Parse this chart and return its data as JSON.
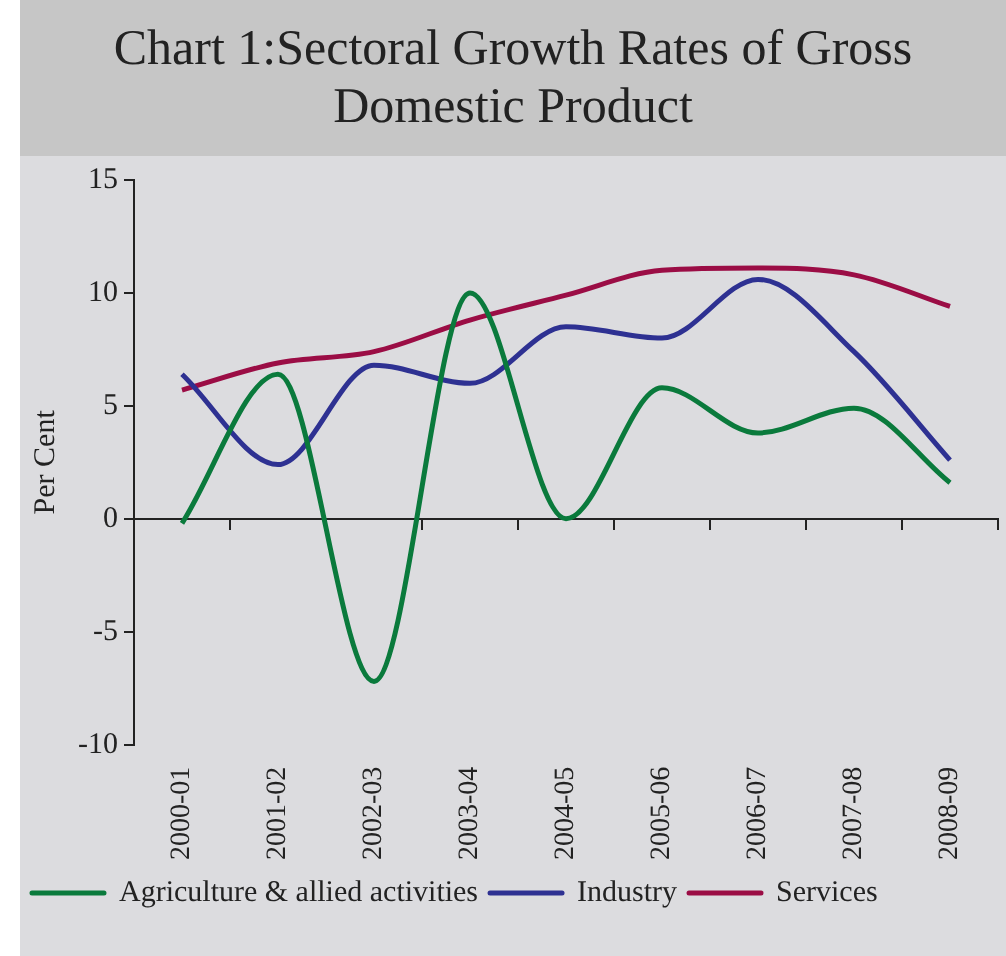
{
  "chart_data": {
    "type": "line",
    "title": "Chart 1:Sectoral Growth Rates of Gross Domestic Product",
    "ylabel": "Per Cent",
    "categories": [
      "2000-01",
      "2001-02",
      "2002-03",
      "2003-04",
      "2004-05",
      "2005-06",
      "2006-07",
      "2007-08",
      "2008-09"
    ],
    "series": [
      {
        "name": "Agriculture & allied activities",
        "color": "#0a7a3c",
        "values": [
          -0.2,
          6.4,
          -7.2,
          10.0,
          0.0,
          5.8,
          3.8,
          4.9,
          1.6
        ]
      },
      {
        "name": "Industry",
        "color": "#2e3192",
        "values": [
          6.4,
          2.4,
          6.8,
          6.0,
          8.5,
          8.0,
          10.6,
          7.4,
          2.6
        ]
      },
      {
        "name": "Services",
        "color": "#9b0d45",
        "values": [
          5.7,
          6.9,
          7.4,
          8.8,
          9.9,
          11.0,
          11.1,
          10.8,
          9.4
        ]
      }
    ],
    "ref_lines": [
      {
        "axis": "y",
        "value": 0,
        "color": "#222222"
      }
    ],
    "ylim": [
      -10,
      15
    ],
    "yticks": [
      -10,
      -5,
      0,
      5,
      10,
      15
    ],
    "grid": false,
    "legend": "bottom",
    "marker": "none",
    "line_style": "solid"
  }
}
